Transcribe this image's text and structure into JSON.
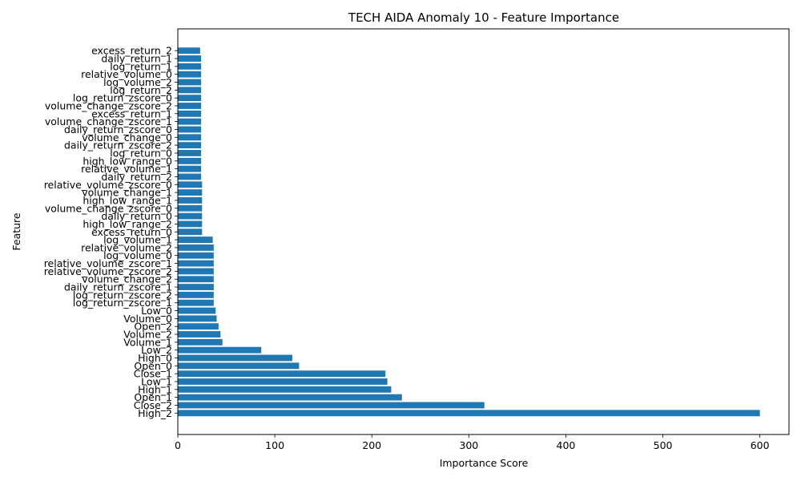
{
  "chart_data": {
    "type": "bar",
    "orientation": "horizontal",
    "title": "TECH AIDA Anomaly 10 - Feature Importance",
    "xlabel": "Importance Score",
    "ylabel": "Feature",
    "xlim": [
      0,
      630
    ],
    "xticks": [
      0,
      100,
      200,
      300,
      400,
      500,
      600
    ],
    "bar_color": "#1f77b4",
    "grid": false,
    "categories": [
      "High_2",
      "Close_2",
      "Open_1",
      "High_1",
      "Low_1",
      "Close_1",
      "Open_0",
      "High_0",
      "Low_2",
      "Volume_1",
      "Volume_2",
      "Open_2",
      "Volume_0",
      "Low_0",
      "log_return_zscore_1",
      "log_return_zscore_2",
      "daily_return_zscore_1",
      "volume_change_2",
      "relative_volume_zscore_2",
      "relative_volume_zscore_1",
      "log_volume_0",
      "relative_volume_2",
      "log_volume_1",
      "excess_return_0",
      "high_low_range_2",
      "daily_return_0",
      "volume_change_zscore_0",
      "high_low_range_1",
      "volume_change_1",
      "relative_volume_zscore_0",
      "daily_return_2",
      "relative_volume_1",
      "high_low_range_0",
      "log_return_0",
      "daily_return_zscore_2",
      "volume_change_0",
      "daily_return_zscore_0",
      "volume_change_zscore_1",
      "excess_return_1",
      "volume_change_zscore_2",
      "log_return_zscore_0",
      "log_return_2",
      "log_volume_2",
      "relative_volume_0",
      "log_return_1",
      "daily_return_1",
      "excess_return_2"
    ],
    "values": [
      600,
      316,
      231,
      220,
      216,
      214,
      125,
      118,
      86,
      46,
      44,
      42,
      40,
      39,
      37,
      37,
      37,
      37,
      37,
      37,
      37,
      37,
      36,
      25,
      25,
      25,
      25,
      25,
      25,
      25,
      24,
      24,
      24,
      24,
      24,
      24,
      24,
      24,
      24,
      24,
      24,
      24,
      24,
      24,
      24,
      24,
      23
    ]
  }
}
